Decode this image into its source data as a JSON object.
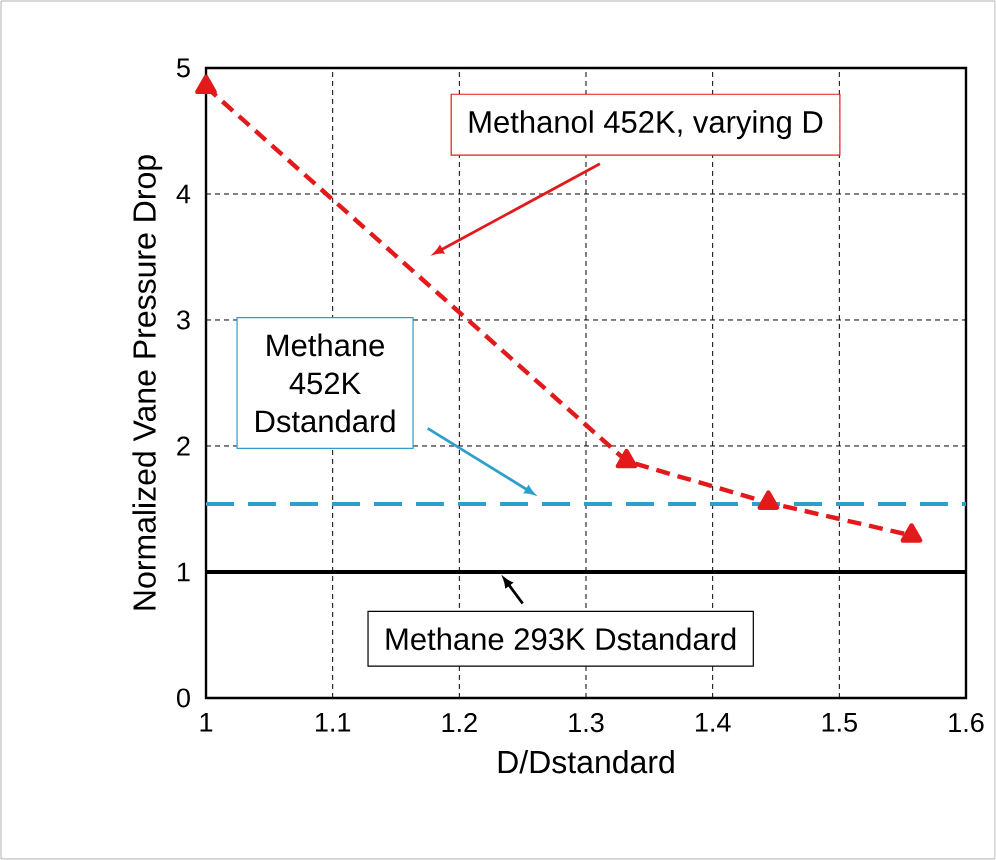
{
  "chart_data": {
    "type": "line",
    "xlabel": "D/Dstandard",
    "ylabel": "Normalized Vane Pressure Drop",
    "x": [
      1,
      1.332,
      1.444,
      1.557
    ],
    "series": [
      {
        "name": "Methanol 452K, varying D",
        "color": "#e31a1c",
        "values": [
          4.85,
          1.88,
          1.55,
          1.29
        ]
      }
    ],
    "marker": "triangle",
    "line_style": "dashed",
    "xlim": [
      1,
      1.6
    ],
    "xticks": [
      1,
      1.1,
      1.2,
      1.3,
      1.4,
      1.5,
      1.6
    ],
    "ylim": [
      0,
      5
    ],
    "yticks": [
      0,
      1,
      2,
      3,
      4,
      5
    ],
    "grid": true,
    "ref_lines": [
      {
        "axis": "y",
        "value": 1.54,
        "label": "Methane 452K Dstandard",
        "color": "#2e9fcb",
        "line_style": "dashed"
      },
      {
        "axis": "y",
        "value": 1,
        "label": "Methane  293K  Dstandard",
        "color": "#000000",
        "line_style": "solid"
      }
    ]
  }
}
